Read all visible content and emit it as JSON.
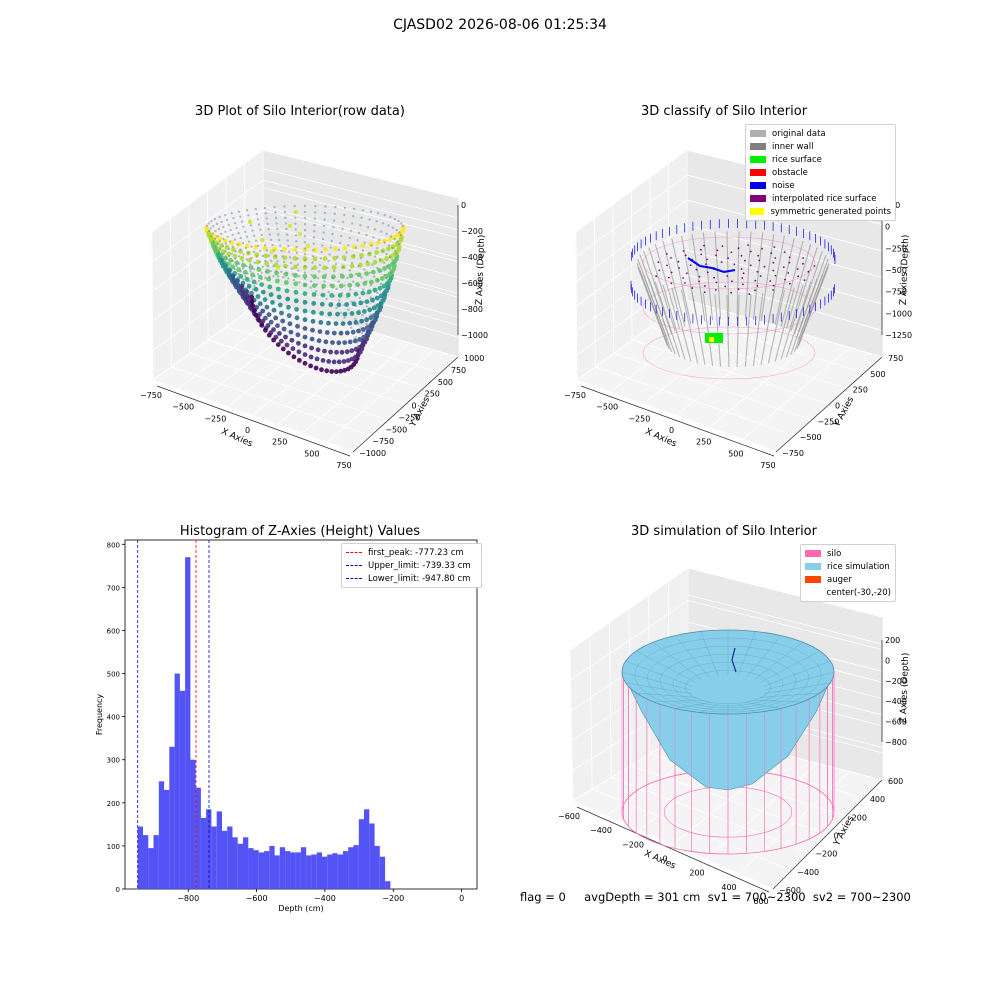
{
  "suptitle": "CJASD02 2026-08-06 01:25:34",
  "footer": "flag = 0     avgDepth = 301 cm  sv1 = 700~2300  sv2 = 700~2300",
  "colors": {
    "inner_wall": "#808080",
    "original": "#b0b0b0",
    "rice_surface": "#00ee00",
    "obstacle": "#ff0000",
    "noise": "#0000ee",
    "interpolated": "#800080",
    "symmetric": "#ffff00",
    "silo": "#ff69b4",
    "rice_sim": "#87ceeb",
    "auger": "#ff4500",
    "hist_bar": "#4b4bf5"
  },
  "chart_data": [
    {
      "type": "scatter",
      "title": "3D Plot of Silo Interior(row data)",
      "xlabel": "X Axies",
      "ylabel": "Y Axies",
      "zlabel": "Z Axies (Depth)",
      "xticks": [
        "−750",
        "−500",
        "−250",
        "0",
        "250",
        "500",
        "750"
      ],
      "yticks": [
        "−1000",
        "−750",
        "−500",
        "−250",
        "0",
        "250",
        "500",
        "750",
        "1000"
      ],
      "zticks": [
        "0",
        "−200",
        "−400",
        "−600",
        "−800",
        "−1000"
      ],
      "colormap": "viridis"
    },
    {
      "type": "scatter",
      "title": "3D classify of Silo Interior",
      "xlabel": "X Axies",
      "ylabel": "Y Axies",
      "zlabel": "Z Axies (Depth)",
      "xticks": [
        "−750",
        "−500",
        "−250",
        "0",
        "250",
        "500",
        "750"
      ],
      "yticks": [
        "−750",
        "−500",
        "−250",
        "0",
        "250",
        "500",
        "750"
      ],
      "zticks": [
        "250",
        "0",
        "−250",
        "−500",
        "−750",
        "−1000",
        "−1250"
      ],
      "zticks_top_hidden": "500",
      "legend": [
        {
          "label": "original data",
          "color": "#b0b0b0"
        },
        {
          "label": "inner wall",
          "color": "#808080"
        },
        {
          "label": "rice surface",
          "color": "#00ee00"
        },
        {
          "label": "obstacle",
          "color": "#ff0000"
        },
        {
          "label": "noise",
          "color": "#0000ee"
        },
        {
          "label": "interpolated rice surface",
          "color": "#800080"
        },
        {
          "label": "symmetric generated points",
          "color": "#ffff00"
        }
      ]
    },
    {
      "type": "bar",
      "title": "Histogram of Z-Axies (Height) Values",
      "xlabel": "Depth (cm)",
      "ylabel": "Frequency",
      "xlim": [
        -985,
        45
      ],
      "ylim": [
        0,
        810
      ],
      "xticks": [
        {
          "v": -800,
          "t": "−800"
        },
        {
          "v": -600,
          "t": "−600"
        },
        {
          "v": -400,
          "t": "−400"
        },
        {
          "v": -200,
          "t": "−200"
        },
        {
          "v": 0,
          "t": "0"
        }
      ],
      "yticks": [
        0,
        100,
        200,
        300,
        400,
        500,
        600,
        700,
        800
      ],
      "bin_start": -947.8,
      "bin_width": 15.4,
      "values": [
        145,
        125,
        95,
        125,
        250,
        230,
        330,
        500,
        460,
        770,
        300,
        235,
        165,
        185,
        145,
        180,
        135,
        145,
        120,
        105,
        120,
        95,
        90,
        85,
        88,
        100,
        78,
        97,
        88,
        85,
        85,
        97,
        78,
        80,
        85,
        75,
        80,
        83,
        80,
        88,
        97,
        102,
        162,
        185,
        152,
        100,
        75,
        18
      ],
      "lines": [
        {
          "x": -777.23,
          "label": "first_peak: -777.23 cm",
          "color": "#ff0000"
        },
        {
          "x": -739.33,
          "label": "Upper_limit: -739.33 cm",
          "color": "#0000cc"
        },
        {
          "x": -947.8,
          "label": "Lower_limit: -947.80 cm",
          "color": "#0000cc"
        }
      ]
    },
    {
      "type": "surface",
      "title": "3D simulation of Silo Interior",
      "xlabel": "X Axies",
      "ylabel": "Y Axies",
      "zlabel": "Z Axies (Depth)",
      "xticks": [
        "−600",
        "−400",
        "−200",
        "0",
        "200",
        "400",
        "600"
      ],
      "yticks": [
        "−600",
        "−400",
        "−200",
        "0",
        "200",
        "400",
        "600"
      ],
      "zticks": [
        "200",
        "0",
        "−200",
        "−400",
        "−600",
        "−800"
      ],
      "legend": [
        {
          "label": "silo",
          "color": "#ff69b4"
        },
        {
          "label": "rice simulation",
          "color": "#87ceeb"
        },
        {
          "label": "auger",
          "color": "#ff4500"
        },
        {
          "label": "center(-30,-20)",
          "color": ""
        }
      ]
    }
  ]
}
